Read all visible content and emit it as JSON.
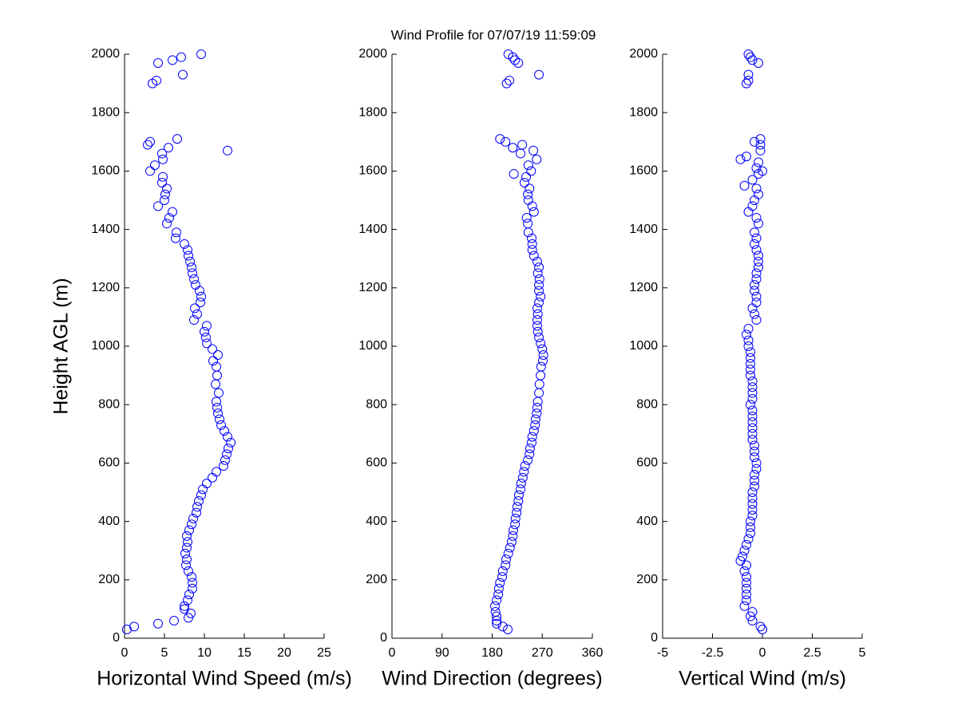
{
  "title": "Wind Profile for  07/07/19 11:59:09",
  "chart_data": [
    {
      "type": "scatter",
      "xlabel": "Horizontal Wind Speed (m/s)",
      "ylabel": "Height AGL (m)",
      "color": "#0000ff",
      "xlim": [
        0,
        25
      ],
      "xticks": [
        0,
        5,
        10,
        15,
        20,
        25
      ],
      "ylim": [
        0,
        2000
      ],
      "yticks": [
        0,
        200,
        400,
        600,
        800,
        1000,
        1200,
        1400,
        1600,
        1800,
        2000
      ],
      "y": [
        30,
        40,
        50,
        60,
        70,
        85,
        100,
        110,
        130,
        150,
        170,
        190,
        210,
        230,
        250,
        270,
        290,
        310,
        330,
        350,
        370,
        390,
        410,
        430,
        450,
        470,
        490,
        510,
        530,
        550,
        570,
        590,
        610,
        630,
        650,
        670,
        690,
        710,
        730,
        750,
        770,
        790,
        810,
        840,
        870,
        900,
        930,
        950,
        970,
        990,
        1010,
        1030,
        1050,
        1070,
        1090,
        1110,
        1130,
        1150,
        1170,
        1190,
        1210,
        1230,
        1250,
        1270,
        1290,
        1310,
        1330,
        1350,
        1370,
        1390,
        1420,
        1440,
        1460,
        1480,
        1500,
        1520,
        1540,
        1560,
        1580,
        1600,
        1620,
        1640,
        1660,
        1670,
        1680,
        1690,
        1700,
        1710,
        1900,
        1910,
        1930,
        1970,
        1980,
        1990,
        2000
      ],
      "x": [
        0.3,
        1.2,
        4.2,
        6.2,
        8.0,
        8.3,
        7.5,
        7.5,
        7.9,
        8.1,
        8.5,
        8.5,
        8.4,
        8.0,
        7.7,
        7.8,
        7.6,
        7.8,
        7.9,
        7.8,
        8.1,
        8.4,
        8.6,
        9.0,
        9.1,
        9.3,
        9.6,
        9.8,
        10.3,
        11.0,
        11.5,
        12.4,
        12.6,
        12.8,
        13.0,
        13.3,
        12.9,
        12.5,
        12.1,
        11.9,
        11.7,
        11.6,
        11.5,
        11.8,
        11.4,
        11.6,
        11.5,
        11.1,
        11.7,
        11.0,
        10.3,
        10.2,
        10.0,
        10.3,
        8.7,
        9.1,
        8.8,
        9.5,
        9.6,
        9.4,
        8.9,
        8.7,
        8.5,
        8.4,
        8.2,
        8.0,
        7.9,
        7.5,
        6.4,
        6.5,
        5.3,
        5.6,
        6.0,
        4.2,
        5.0,
        5.1,
        5.3,
        4.7,
        4.8,
        3.2,
        3.8,
        4.8,
        4.7,
        12.9,
        5.5,
        2.9,
        3.2,
        6.6,
        3.5,
        4.0,
        7.3,
        4.2,
        6.0,
        7.1,
        9.6
      ]
    },
    {
      "type": "scatter",
      "xlabel": "Wind Direction (degrees)",
      "color": "#0000ff",
      "xlim": [
        0,
        360
      ],
      "xticks": [
        0,
        90,
        180,
        270,
        360
      ],
      "ylim": [
        0,
        2000
      ],
      "yticks": [
        0,
        200,
        400,
        600,
        800,
        1000,
        1200,
        1400,
        1600,
        1800,
        2000
      ],
      "y": [
        30,
        40,
        50,
        60,
        75,
        90,
        110,
        130,
        150,
        170,
        190,
        210,
        230,
        250,
        270,
        290,
        310,
        330,
        350,
        370,
        390,
        410,
        430,
        450,
        470,
        490,
        510,
        530,
        550,
        570,
        590,
        610,
        630,
        650,
        670,
        690,
        710,
        730,
        750,
        770,
        790,
        810,
        840,
        870,
        900,
        930,
        950,
        970,
        990,
        1010,
        1030,
        1050,
        1070,
        1090,
        1110,
        1130,
        1150,
        1170,
        1190,
        1210,
        1230,
        1250,
        1270,
        1290,
        1310,
        1330,
        1350,
        1370,
        1390,
        1420,
        1440,
        1460,
        1480,
        1500,
        1520,
        1540,
        1560,
        1580,
        1590,
        1600,
        1620,
        1640,
        1660,
        1670,
        1680,
        1690,
        1700,
        1710,
        1900,
        1910,
        1930,
        1970,
        1980,
        1990,
        2000
      ],
      "x": [
        208,
        199,
        188,
        188,
        188,
        186,
        185,
        188,
        191,
        192,
        194,
        198,
        199,
        204,
        205,
        209,
        212,
        215,
        217,
        218,
        221,
        222,
        224,
        225,
        227,
        228,
        231,
        232,
        235,
        237,
        239,
        244,
        247,
        248,
        251,
        252,
        255,
        257,
        258,
        260,
        261,
        262,
        264,
        265,
        267,
        268,
        271,
        272,
        270,
        267,
        264,
        262,
        261,
        261,
        262,
        261,
        264,
        267,
        264,
        264,
        265,
        262,
        264,
        261,
        255,
        252,
        252,
        251,
        245,
        244,
        242,
        255,
        252,
        245,
        244,
        247,
        238,
        241,
        219,
        250,
        245,
        260,
        231,
        254,
        217,
        234,
        204,
        194,
        206,
        211,
        264,
        227,
        221,
        217,
        209
      ]
    },
    {
      "type": "scatter",
      "xlabel": "Vertical Wind (m/s)",
      "color": "#0000ff",
      "xlim": [
        -5,
        5
      ],
      "xticks": [
        -5,
        -2.5,
        0,
        2.5,
        5
      ],
      "ylim": [
        0,
        2000
      ],
      "yticks": [
        0,
        200,
        400,
        600,
        800,
        1000,
        1200,
        1400,
        1600,
        1800,
        2000
      ],
      "y": [
        30,
        40,
        60,
        75,
        90,
        110,
        130,
        150,
        170,
        190,
        210,
        230,
        250,
        265,
        280,
        300,
        320,
        340,
        360,
        380,
        400,
        420,
        440,
        460,
        480,
        500,
        520,
        540,
        560,
        580,
        600,
        620,
        640,
        660,
        680,
        700,
        720,
        740,
        760,
        780,
        800,
        820,
        840,
        860,
        880,
        900,
        920,
        940,
        960,
        980,
        1000,
        1020,
        1040,
        1060,
        1090,
        1110,
        1130,
        1150,
        1170,
        1190,
        1210,
        1230,
        1250,
        1270,
        1290,
        1310,
        1330,
        1350,
        1370,
        1390,
        1420,
        1440,
        1460,
        1480,
        1500,
        1520,
        1540,
        1550,
        1570,
        1590,
        1600,
        1610,
        1630,
        1640,
        1650,
        1670,
        1690,
        1700,
        1710,
        1900,
        1910,
        1930,
        1970,
        1980,
        1990,
        2000
      ],
      "x": [
        0.0,
        -0.1,
        -0.5,
        -0.6,
        -0.5,
        -0.9,
        -0.8,
        -0.8,
        -0.8,
        -0.8,
        -0.8,
        -0.9,
        -0.8,
        -1.1,
        -1.0,
        -0.9,
        -0.8,
        -0.7,
        -0.6,
        -0.6,
        -0.6,
        -0.5,
        -0.5,
        -0.5,
        -0.5,
        -0.5,
        -0.4,
        -0.4,
        -0.4,
        -0.3,
        -0.3,
        -0.4,
        -0.4,
        -0.4,
        -0.5,
        -0.5,
        -0.5,
        -0.5,
        -0.5,
        -0.5,
        -0.6,
        -0.5,
        -0.5,
        -0.5,
        -0.5,
        -0.6,
        -0.6,
        -0.6,
        -0.6,
        -0.6,
        -0.7,
        -0.7,
        -0.8,
        -0.7,
        -0.3,
        -0.4,
        -0.5,
        -0.3,
        -0.3,
        -0.4,
        -0.4,
        -0.3,
        -0.3,
        -0.2,
        -0.2,
        -0.2,
        -0.3,
        -0.4,
        -0.3,
        -0.4,
        -0.2,
        -0.3,
        -0.7,
        -0.5,
        -0.4,
        -0.2,
        -0.3,
        -0.9,
        -0.5,
        -0.2,
        0.0,
        -0.3,
        -0.2,
        -1.1,
        -0.8,
        -0.1,
        -0.1,
        -0.4,
        -0.1,
        -0.8,
        -0.7,
        -0.7,
        -0.2,
        -0.5,
        -0.6,
        -0.7
      ]
    }
  ]
}
